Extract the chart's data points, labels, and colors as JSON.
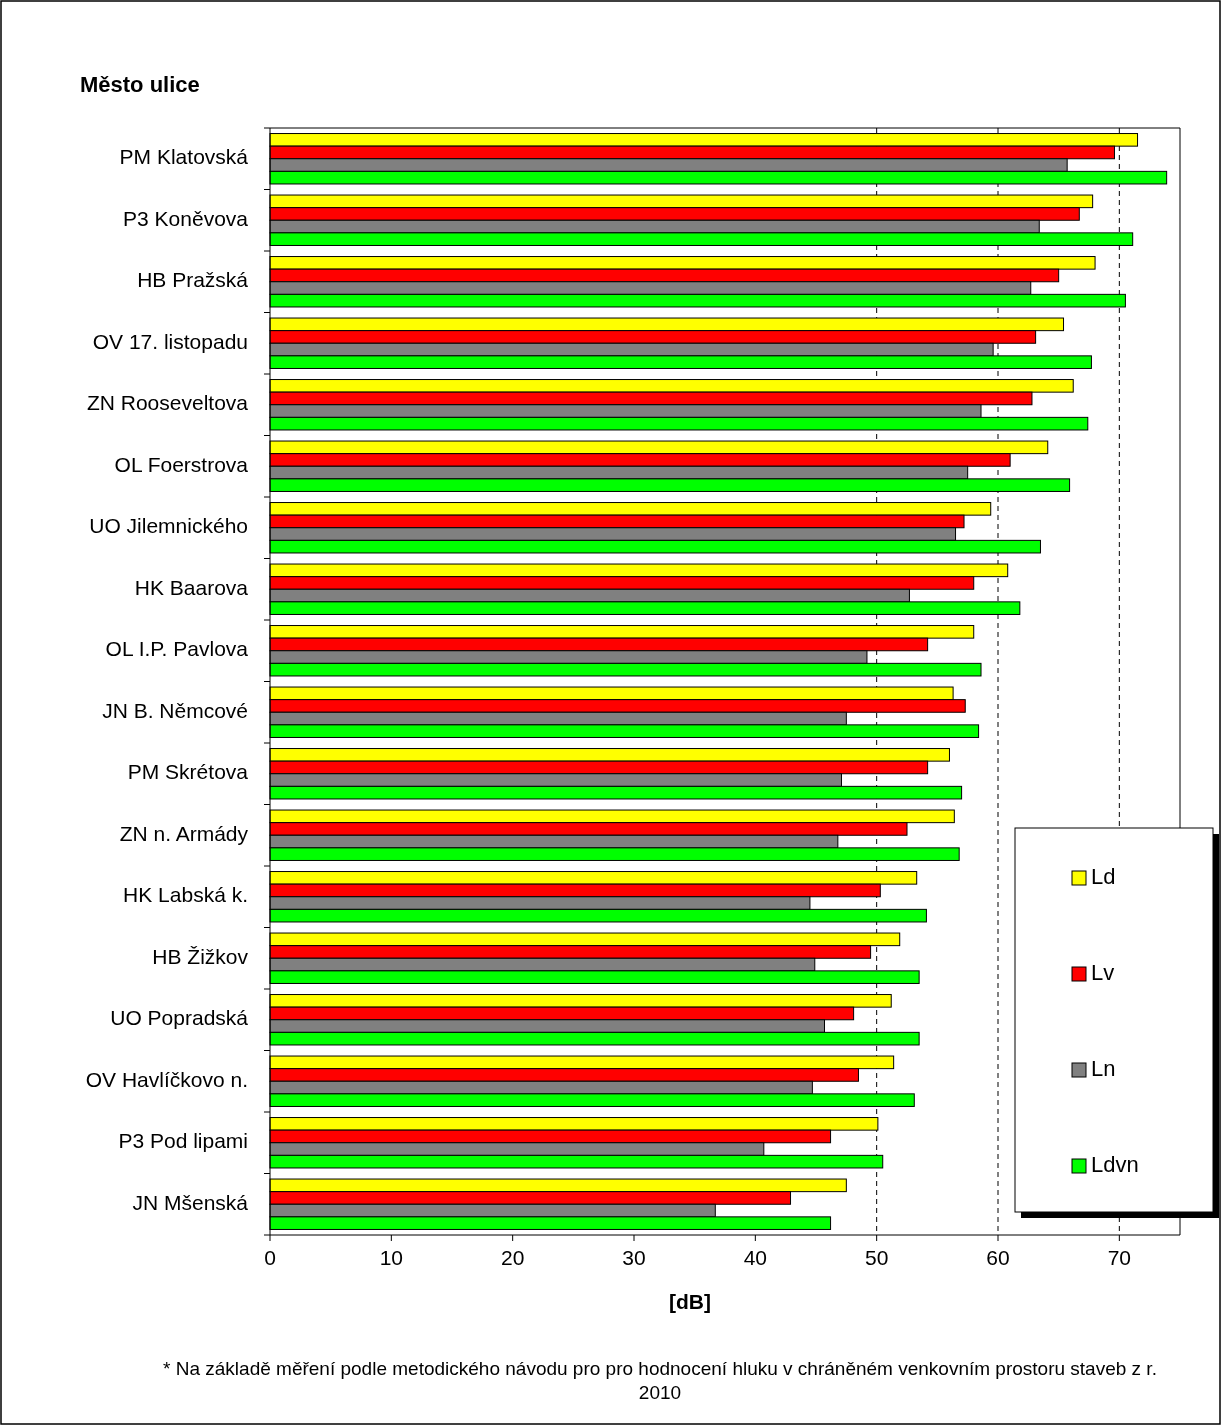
{
  "chart_data": {
    "type": "bar",
    "orientation": "horizontal",
    "ylabel": "Město ulice",
    "xlabel": "[dB]",
    "categories": [
      "PM Klatovská",
      "P3 Koněvova",
      "HB Pražská",
      "OV 17. listopadu",
      "ZN Rooseveltova",
      "OL Foerstrova",
      "UO Jilemnického",
      "HK Baarova",
      "OL I.P. Pavlova",
      "JN B. Němcové",
      "PM Skrétova",
      "ZN n. Armády",
      "HK Labská k.",
      "HB Žižkov",
      "UO Popradská",
      "OV Havlíčkovo n.",
      "P3 Pod lipami",
      "JN Mšenská"
    ],
    "series": [
      {
        "name": "Ld",
        "color": "#ffff00",
        "values": [
          71.5,
          67.8,
          68.0,
          65.4,
          66.2,
          64.1,
          59.4,
          60.8,
          58.0,
          56.3,
          56.0,
          56.4,
          53.3,
          51.9,
          51.2,
          51.4,
          50.1,
          47.5
        ]
      },
      {
        "name": "Lv",
        "color": "#ff0000",
        "values": [
          69.6,
          66.7,
          65.0,
          63.1,
          62.8,
          61.0,
          57.2,
          58.0,
          54.2,
          57.3,
          54.2,
          52.5,
          50.3,
          49.5,
          48.1,
          48.5,
          46.2,
          42.9
        ]
      },
      {
        "name": "Ln",
        "color": "#808080",
        "values": [
          65.7,
          63.4,
          62.7,
          59.6,
          58.6,
          57.5,
          56.5,
          52.7,
          49.2,
          47.5,
          47.1,
          46.8,
          44.5,
          44.9,
          45.7,
          44.7,
          40.7,
          36.7
        ]
      },
      {
        "name": "Ldvn",
        "color": "#00ff00",
        "values": [
          73.9,
          71.1,
          70.5,
          67.7,
          67.4,
          65.9,
          63.5,
          61.8,
          58.6,
          58.4,
          57.0,
          56.8,
          54.1,
          53.5,
          53.5,
          53.1,
          50.5,
          46.2
        ]
      }
    ],
    "xlim": [
      0,
      75
    ],
    "xticks": [
      0,
      10,
      20,
      30,
      40,
      50,
      60,
      70
    ],
    "ref_lines": [
      {
        "axis": "x",
        "value": 50,
        "line_style": "dashed",
        "color": "#000000"
      },
      {
        "axis": "x",
        "value": 60,
        "line_style": "dashed",
        "color": "#000000"
      },
      {
        "axis": "x",
        "value": 70,
        "line_style": "dashed",
        "color": "#000000"
      }
    ],
    "legend": "right",
    "grid": false,
    "annotations": [
      "* Na základě měření podle metodického návodu pro pro hodnocení hluku v chráněném venkovním prostoru staveb z r. 2010"
    ]
  }
}
